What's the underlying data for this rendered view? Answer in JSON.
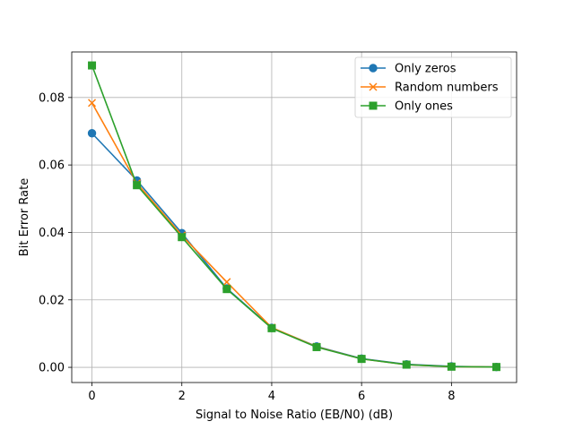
{
  "chart_data": {
    "type": "line",
    "title": "",
    "xlabel": "Signal to Noise Ratio (EB/N0) (dB)",
    "ylabel": "Bit Error Rate",
    "xlim": [
      -0.45,
      9.45
    ],
    "ylim": [
      -0.0045,
      0.0935
    ],
    "xticks": [
      0,
      2,
      4,
      6,
      8
    ],
    "xtick_labels": [
      "0",
      "2",
      "4",
      "6",
      "8"
    ],
    "yticks": [
      0.0,
      0.02,
      0.04,
      0.06,
      0.08
    ],
    "ytick_labels": [
      "0.00",
      "0.02",
      "0.04",
      "0.06",
      "0.08"
    ],
    "grid": true,
    "legend_position": "top-right",
    "x": [
      0,
      1,
      2,
      3,
      4,
      5,
      6,
      7,
      8,
      9
    ],
    "series": [
      {
        "name": "Only zeros",
        "color": "#1f77b4",
        "marker": "circle",
        "values": [
          0.0694,
          0.0554,
          0.0398,
          0.0234,
          0.0117,
          0.0062,
          0.0026,
          0.0009,
          0.0003,
          0.0001
        ]
      },
      {
        "name": "Random numbers",
        "color": "#ff7f0e",
        "marker": "x",
        "values": [
          0.0784,
          0.0546,
          0.0391,
          0.0253,
          0.0118,
          0.0061,
          0.0025,
          0.0008,
          0.0002,
          0.0001
        ]
      },
      {
        "name": "Only ones",
        "color": "#2ca02c",
        "marker": "square",
        "values": [
          0.0895,
          0.054,
          0.0386,
          0.0232,
          0.0116,
          0.006,
          0.0025,
          0.0008,
          0.0002,
          0.0001
        ]
      }
    ]
  }
}
